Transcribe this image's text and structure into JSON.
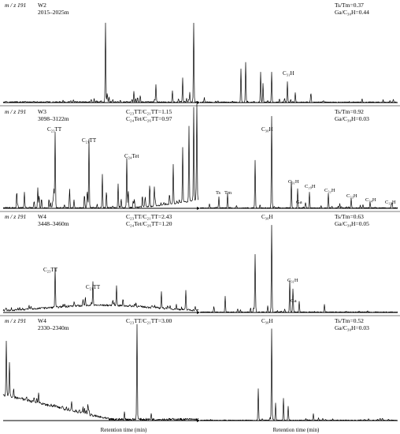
{
  "chart_data": [
    {
      "type": "line",
      "mz": "m / z 191",
      "well": "W2",
      "depth": "2015–2025m",
      "stats_right": [
        "Ts/Tm=0.37",
        "Ga/C₃₀H=0.44"
      ],
      "peak_labels": [
        "C₃₁H"
      ]
    },
    {
      "type": "line",
      "mz": "m / z 191",
      "well": "W3",
      "depth": "3098–3122m",
      "stats_mid": [
        "C₂₃TT/C₂₁TT=1.15",
        "C₂₄Tet/C₂₆TT=0.97"
      ],
      "stats_right": [
        "Ts/Tm=0.92",
        "Ga/C₃₀H=0.03"
      ],
      "peak_labels": [
        "C₂₃TT",
        "C₂₁TT",
        "C₂₄Tet",
        "Ts",
        "Tm",
        "C₃₀H",
        "C₃₁H",
        "C₂₉H",
        "Ga",
        "C₃₂H",
        "C₃₃H",
        "C₃₄H",
        "C₃₅H"
      ]
    },
    {
      "type": "line",
      "mz": "m / z 191",
      "well": "W4",
      "depth": "3448–3460m",
      "stats_mid": [
        "C₂₃TT/C₂₁TT=2.43",
        "C₂₄Tet/C₂₆TT=1.20"
      ],
      "stats_right": [
        "Ts/Tm=0.63",
        "Ga/C₃₀H=0.05"
      ],
      "peak_labels": [
        "C₂₃TT",
        "C₂₁TT",
        "C₃₀H",
        "C₃₁H",
        "Ga"
      ]
    },
    {
      "type": "line",
      "mz": "m / z 191",
      "well": "W4",
      "depth": "2330–2340m",
      "stats_mid": [
        "C₂₃TT/C₂₁TT=3.00"
      ],
      "stats_right": [
        "Ts/Tm=0.52",
        "Ga/C₃₀H=0.03"
      ],
      "peak_labels": [
        "C₃₀H"
      ]
    }
  ],
  "xlabels": [
    "Retention time (min)",
    "Retention time (min)"
  ]
}
